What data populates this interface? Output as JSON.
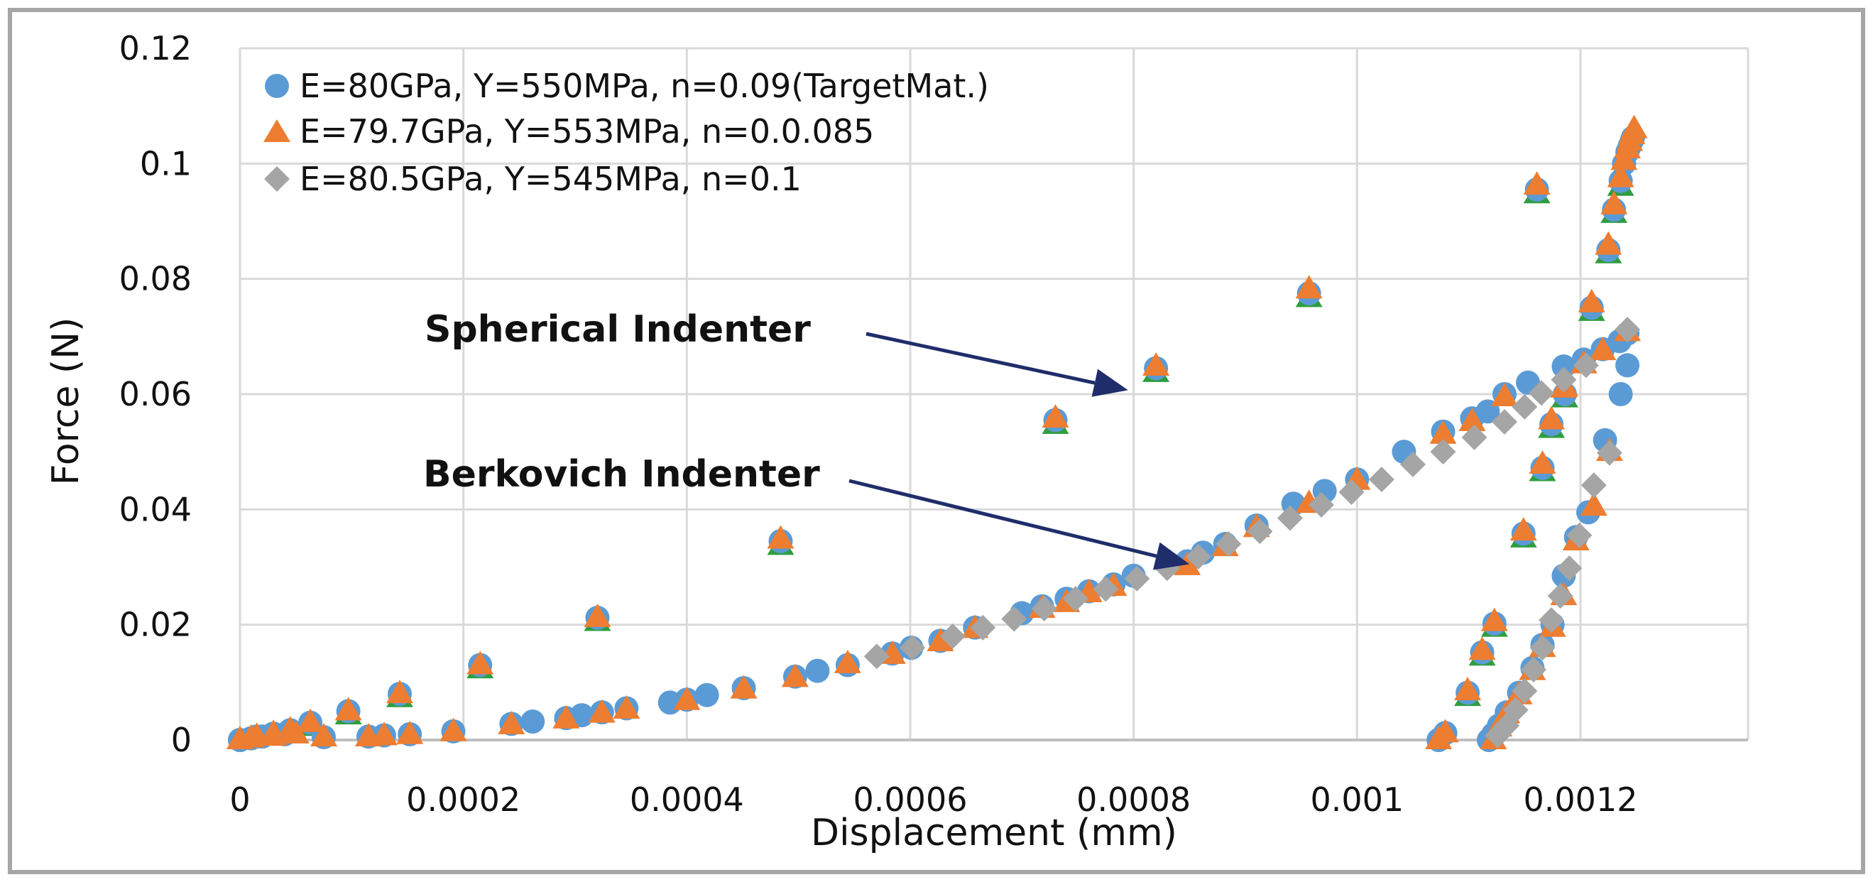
{
  "chart_data": {
    "type": "scatter",
    "title": "",
    "xlabel": "Displacement (mm)",
    "ylabel": "Force (N)",
    "xlim": [
      0,
      0.00135
    ],
    "ylim": [
      0,
      0.12
    ],
    "x_ticks": [
      0,
      0.0002,
      0.0004,
      0.0006,
      0.0008,
      0.001,
      0.0012
    ],
    "x_tick_labels": [
      "0",
      "0.0002",
      "0.0004",
      "0.0006",
      "0.0008",
      "0.001",
      "0.0012"
    ],
    "y_ticks": [
      0,
      0.02,
      0.04,
      0.06,
      0.08,
      0.1,
      0.12
    ],
    "y_tick_labels": [
      "0",
      "0.02",
      "0.04",
      "0.06",
      "0.08",
      "0.1",
      "0.12"
    ],
    "grid": true,
    "legend_position": "top-left",
    "colors": {
      "blue": "#5b9bd5",
      "orange": "#ed7d31",
      "gray": "#a5a5a5",
      "green": "#2e9e3f",
      "arrow": "#1f2d6b",
      "grid": "#d9d9d9",
      "border": "#a6a6a6"
    },
    "series": [
      {
        "name": "E=80GPa, Y=550MPa, n=0.09(TargetMat.)",
        "marker": "circle",
        "color": "#5b9bd5",
        "spherical": {
          "x": [
            0.0,
            1.5e-05,
            3e-05,
            4.5e-05,
            6.3e-05,
            9.7e-05,
            0.000143,
            0.000215,
            0.00032,
            0.000484,
            0.00073,
            0.00082,
            0.000957,
            0.001161,
            0.00121,
            0.001225,
            0.00123,
            0.001236,
            0.001239,
            0.001242,
            0.001244,
            0.001246,
            0.001247,
            0.001186,
            0.001174,
            0.001166,
            0.001149,
            0.001123,
            0.001112,
            0.001099,
            0.001079,
            0.001073
          ],
          "y": [
            0.0,
            0.0006,
            0.0011,
            0.0017,
            0.003,
            0.005,
            0.008,
            0.013,
            0.0212,
            0.0345,
            0.0555,
            0.0645,
            0.0775,
            0.0955,
            0.075,
            0.085,
            0.092,
            0.097,
            0.1,
            0.102,
            0.103,
            0.104,
            0.1045,
            0.06,
            0.0548,
            0.0472,
            0.0358,
            0.0202,
            0.0152,
            0.0082,
            0.0012,
            0.0
          ]
        },
        "berkovich": {
          "x": [
            0.0,
            1e-05,
            2e-05,
            4e-05,
            7.5e-05,
            0.000115,
            0.000129,
            0.000152,
            0.000191,
            0.000243,
            0.000262,
            0.000292,
            0.000306,
            0.000324,
            0.000346,
            0.000385,
            0.0004,
            0.000418,
            0.000451,
            0.000497,
            0.000517,
            0.000544,
            0.000584,
            0.000601,
            0.000627,
            0.000658,
            0.0007,
            0.000718,
            0.00074,
            0.00076,
            0.000782,
            0.0008,
            0.000848,
            0.000862,
            0.000882,
            0.00091,
            0.000943,
            0.000971,
            0.001,
            0.001042,
            0.001077,
            0.001103,
            0.001117,
            0.001132,
            0.001153,
            0.001185,
            0.001203,
            0.00122,
            0.001235,
            0.001242,
            0.001242,
            0.001236,
            0.001222,
            0.001207,
            0.001196,
            0.001185,
            0.001175,
            0.001166,
            0.001157,
            0.001145,
            0.001134,
            0.001127,
            0.001122,
            0.001118
          ],
          "y": [
            0.0,
            0.0003,
            0.0006,
            0.001,
            0.0005,
            0.0006,
            0.0008,
            0.001,
            0.0015,
            0.0028,
            0.0032,
            0.0038,
            0.0043,
            0.0048,
            0.0055,
            0.0065,
            0.007,
            0.0078,
            0.009,
            0.011,
            0.012,
            0.013,
            0.015,
            0.016,
            0.0172,
            0.0195,
            0.022,
            0.0232,
            0.0245,
            0.0258,
            0.027,
            0.0285,
            0.031,
            0.0325,
            0.034,
            0.0372,
            0.041,
            0.0432,
            0.0452,
            0.05,
            0.0535,
            0.0558,
            0.057,
            0.06,
            0.062,
            0.0648,
            0.066,
            0.0678,
            0.0692,
            0.0705,
            0.065,
            0.06,
            0.052,
            0.0395,
            0.0352,
            0.0285,
            0.02,
            0.0165,
            0.0125,
            0.0082,
            0.0048,
            0.0025,
            0.001,
            0.0
          ]
        }
      },
      {
        "name": "E=79.7GPa, Y=553MPa, n=0.0.085",
        "marker": "triangle",
        "color": "#ed7d31",
        "spherical": {
          "x": [
            0.0,
            1.5e-05,
            3e-05,
            4.5e-05,
            6.3e-05,
            9.7e-05,
            0.000143,
            0.000215,
            0.00032,
            0.000484,
            0.00073,
            0.00082,
            0.000957,
            0.001161,
            0.00121,
            0.001225,
            0.00123,
            0.001236,
            0.001239,
            0.001242,
            0.001244,
            0.001246,
            0.001248,
            0.001186,
            0.001174,
            0.001166,
            0.001149,
            0.001123,
            0.001112,
            0.001099,
            0.001079,
            0.001073
          ],
          "y": [
            0.0,
            0.0006,
            0.0011,
            0.0017,
            0.003,
            0.005,
            0.008,
            0.013,
            0.0212,
            0.0348,
            0.0558,
            0.0648,
            0.0782,
            0.0962,
            0.0758,
            0.0858,
            0.0928,
            0.0975,
            0.1005,
            0.1025,
            0.1038,
            0.105,
            0.106,
            0.0612,
            0.0555,
            0.0478,
            0.0362,
            0.0205,
            0.0155,
            0.0085,
            0.0012,
            0.0
          ]
        },
        "berkovich": {
          "x": [
            0.0,
            1e-05,
            3e-05,
            5e-05,
            7.5e-05,
            0.000115,
            0.000129,
            0.000152,
            0.000191,
            0.000243,
            0.000292,
            0.000324,
            0.000346,
            0.0004,
            0.000451,
            0.000497,
            0.000544,
            0.000584,
            0.000627,
            0.000658,
            0.000718,
            0.00074,
            0.00076,
            0.000782,
            0.000848,
            0.000882,
            0.00091,
            0.000957,
            0.001,
            0.001077,
            0.001103,
            0.001132,
            0.001185,
            0.001203,
            0.00122,
            0.001242,
            0.001226,
            0.001212,
            0.001196,
            0.001185,
            0.001175,
            0.001166,
            0.001157,
            0.001145,
            0.001134,
            0.001127,
            0.001122
          ],
          "y": [
            0.0,
            0.0003,
            0.0006,
            0.001,
            0.0005,
            0.0005,
            0.0007,
            0.0009,
            0.0014,
            0.0026,
            0.0036,
            0.0046,
            0.0053,
            0.0068,
            0.0088,
            0.0108,
            0.0132,
            0.0148,
            0.017,
            0.0193,
            0.0228,
            0.0238,
            0.0255,
            0.0266,
            0.0302,
            0.0335,
            0.0368,
            0.041,
            0.045,
            0.053,
            0.0552,
            0.0595,
            0.061,
            0.0652,
            0.0675,
            0.0708,
            0.05,
            0.0405,
            0.0345,
            0.025,
            0.0195,
            0.016,
            0.012,
            0.0078,
            0.0045,
            0.0022,
            0.0
          ]
        }
      },
      {
        "name": "E=80.5GPa, Y=545MPa, n=0.1",
        "marker": "diamond",
        "color": "#a5a5a5",
        "spherical": {
          "x": [],
          "y": []
        },
        "berkovich": {
          "x": [
            0.00057,
            0.000602,
            0.000638,
            0.000665,
            0.000693,
            0.00072,
            0.000748,
            0.000775,
            0.000803,
            0.00083,
            0.000858,
            0.000885,
            0.000913,
            0.00094,
            0.000968,
            0.000995,
            0.001022,
            0.00105,
            0.001077,
            0.001105,
            0.001132,
            0.00115,
            0.001165,
            0.001185,
            0.001205,
            0.001242,
            0.001226,
            0.001212,
            0.001199,
            0.00119,
            0.001182,
            0.001174,
            0.001166,
            0.001158,
            0.00115,
            0.001142,
            0.001134,
            0.001126
          ],
          "y": [
            0.0145,
            0.016,
            0.018,
            0.0195,
            0.021,
            0.0228,
            0.0245,
            0.0262,
            0.028,
            0.0298,
            0.0318,
            0.034,
            0.0362,
            0.0385,
            0.0408,
            0.043,
            0.0452,
            0.0478,
            0.05,
            0.0525,
            0.0552,
            0.0578,
            0.0602,
            0.0625,
            0.065,
            0.0712,
            0.0498,
            0.0442,
            0.0355,
            0.0298,
            0.025,
            0.0208,
            0.016,
            0.0122,
            0.0085,
            0.0052,
            0.0025,
            0.0008
          ]
        }
      }
    ],
    "spherical_overlay": {
      "color": "#2e9e3f",
      "x": [
        6.3e-05,
        9.7e-05,
        0.000143,
        0.000215,
        0.00032,
        0.000484,
        0.00073,
        0.00082,
        0.000957,
        0.001161,
        0.00121,
        0.001225,
        0.00123,
        0.001236,
        0.001099,
        0.001112,
        0.001123,
        0.001149,
        0.001166,
        0.001174,
        0.001186
      ],
      "y": [
        0.0028,
        0.0048,
        0.0078,
        0.0128,
        0.021,
        0.0342,
        0.0552,
        0.0642,
        0.0772,
        0.0952,
        0.0748,
        0.0848,
        0.0918,
        0.0965,
        0.008,
        0.015,
        0.02,
        0.0355,
        0.047,
        0.0545,
        0.0598
      ]
    },
    "annotations": [
      {
        "text": "Spherical Indenter",
        "target_x": 0.000795,
        "target_y": 0.0607
      },
      {
        "text": "Berkovich Indenter",
        "target_x": 0.00085,
        "target_y": 0.0305
      }
    ]
  }
}
